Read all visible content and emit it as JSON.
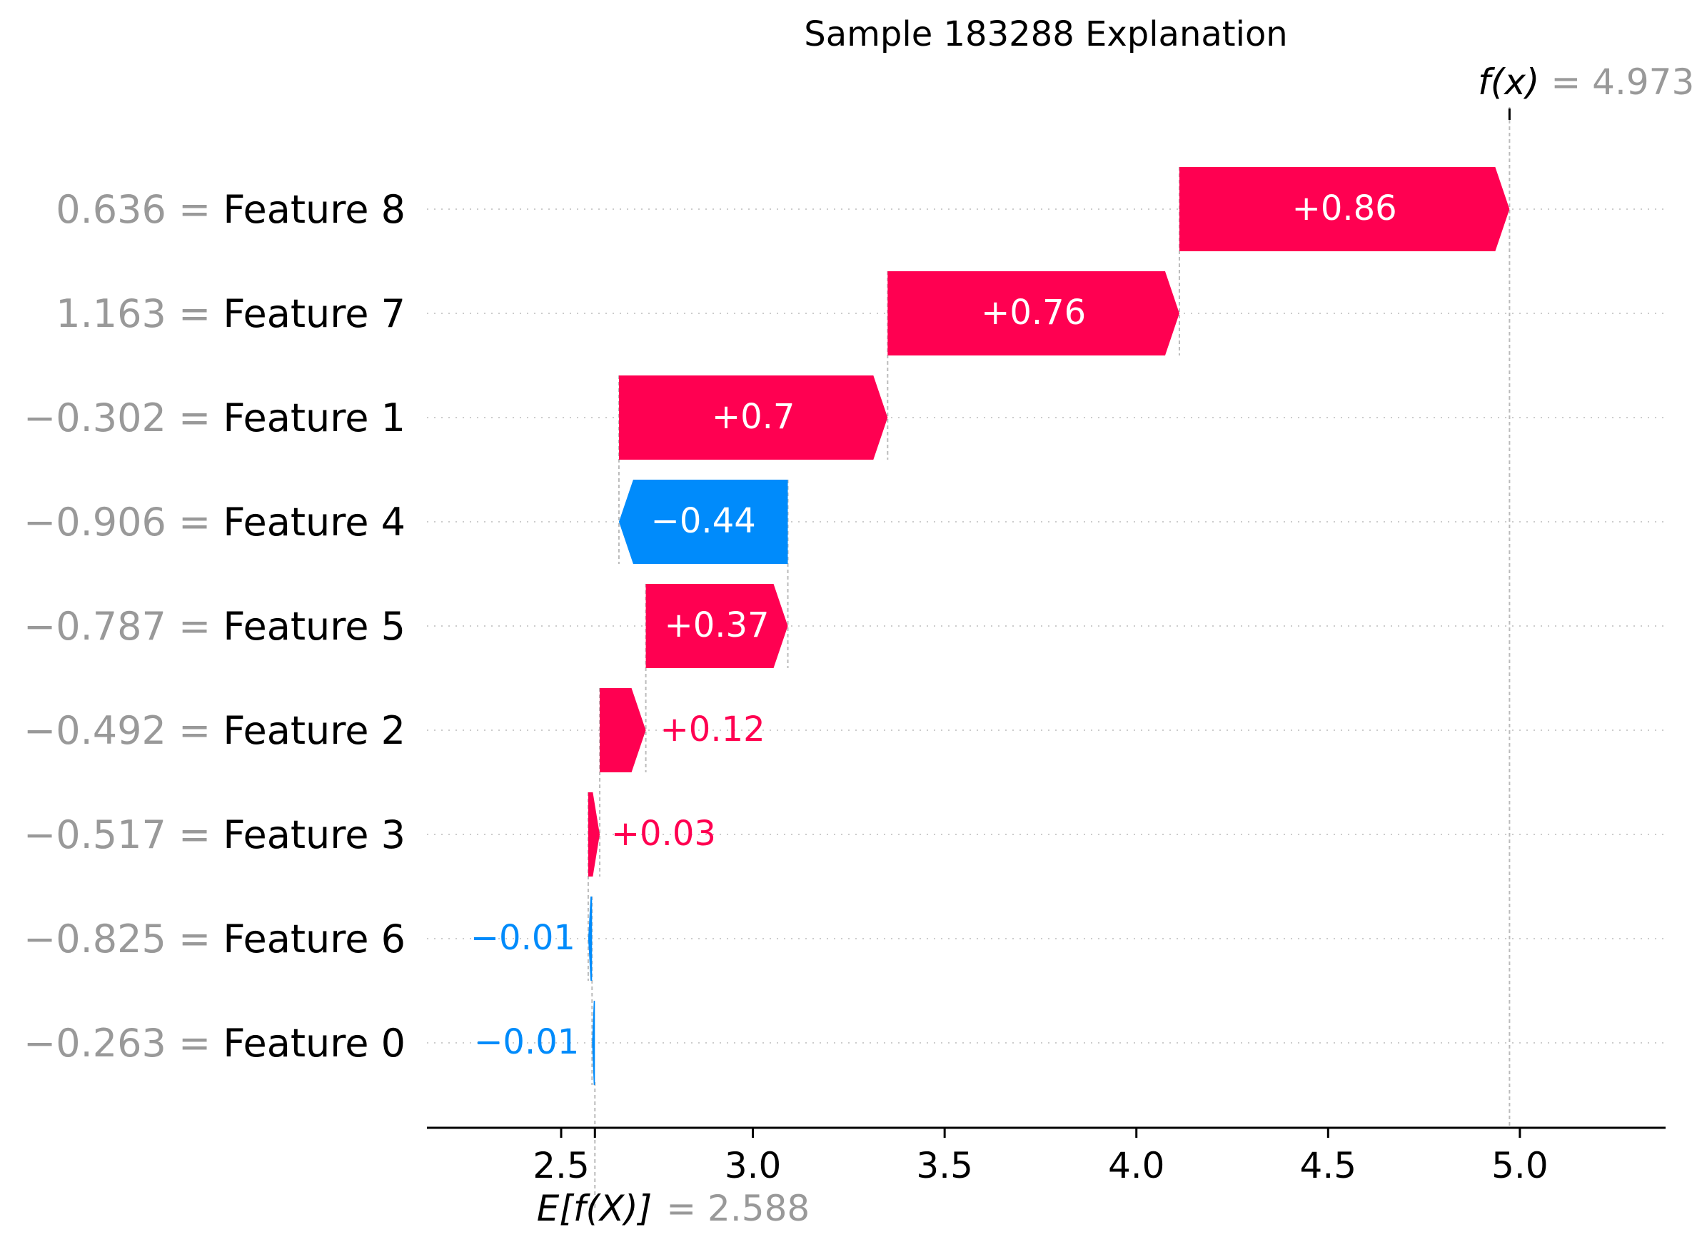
{
  "chart_data": {
    "type": "waterfall",
    "title": "Sample 183288 Explanation",
    "base_value": 2.588,
    "output_value": 4.973,
    "base_label": "E[f(X)]",
    "base_value_label": "= 2.588",
    "output_label": "f(x)",
    "output_value_label": "= 4.973",
    "xlim": [
      2.15,
      5.38
    ],
    "xticks": [
      2.5,
      3.0,
      3.5,
      4.0,
      4.5,
      5.0
    ],
    "xtick_labels": [
      "2.5",
      "3.0",
      "3.5",
      "4.0",
      "4.5",
      "5.0"
    ],
    "features": [
      {
        "name": "Feature 8",
        "value_label": "0.636 =",
        "contribution": 0.86,
        "label": "+0.86"
      },
      {
        "name": "Feature 7",
        "value_label": "1.163 =",
        "contribution": 0.76,
        "label": "+0.76"
      },
      {
        "name": "Feature 1",
        "value_label": "−0.302 =",
        "contribution": 0.7,
        "label": "+0.7"
      },
      {
        "name": "Feature 4",
        "value_label": "−0.906 =",
        "contribution": -0.44,
        "label": "−0.44"
      },
      {
        "name": "Feature 5",
        "value_label": "−0.787 =",
        "contribution": 0.37,
        "label": "+0.37"
      },
      {
        "name": "Feature 2",
        "value_label": "−0.492 =",
        "contribution": 0.12,
        "label": "+0.12"
      },
      {
        "name": "Feature 3",
        "value_label": "−0.517 =",
        "contribution": 0.03,
        "label": "+0.03"
      },
      {
        "name": "Feature 6",
        "value_label": "−0.825 =",
        "contribution": -0.01,
        "label": "−0.01"
      },
      {
        "name": "Feature 0",
        "value_label": "−0.263 =",
        "contribution": -0.01,
        "label": "−0.01"
      }
    ],
    "colors": {
      "positive": "#ff0051",
      "negative": "#008bfb",
      "muted": "#999999",
      "grid": "#cccccc"
    }
  }
}
